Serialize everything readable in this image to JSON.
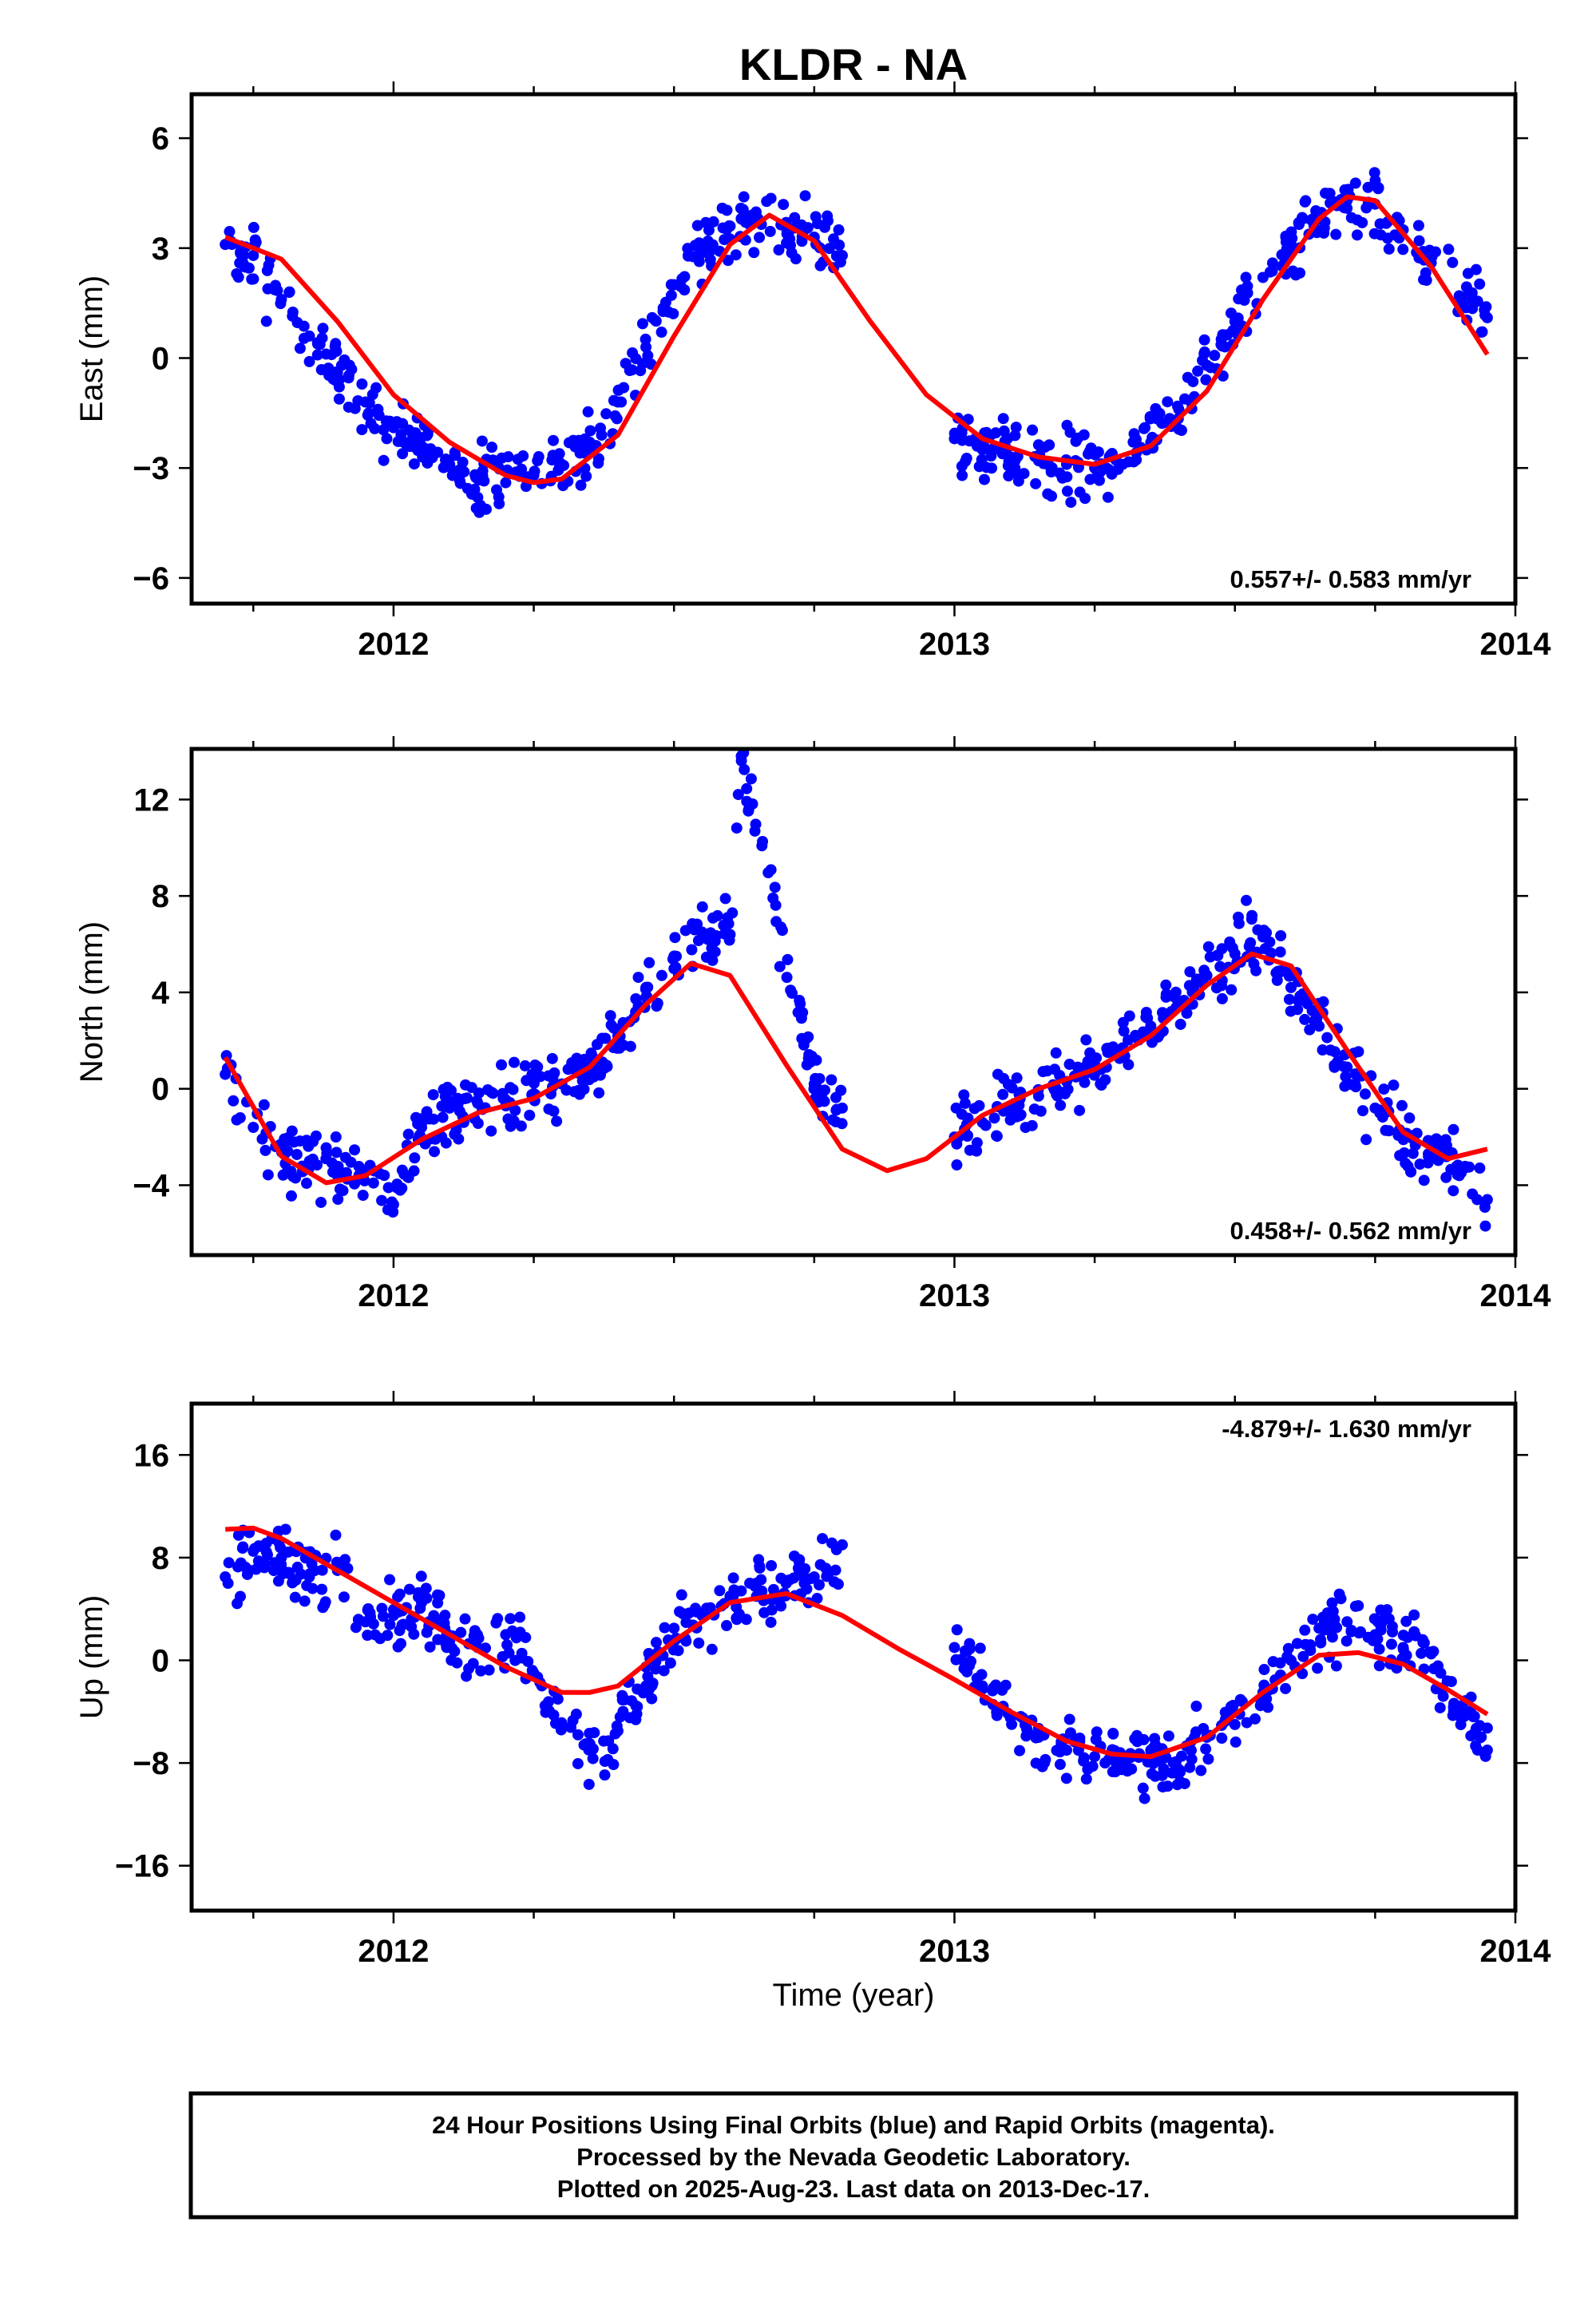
{
  "chart_data": {
    "type": "scatter",
    "title": "KLDR - NA",
    "xlabel": "Time (year)",
    "xlim": [
      2011.64,
      2014.0
    ],
    "x_ticks": [
      "2012",
      "2013",
      "2014"
    ],
    "footnote": [
      "24 Hour Positions Using Final Orbits (blue) and Rapid Orbits (magenta).",
      "Processed by the Nevada Geodetic Laboratory.",
      "Plotted on 2025-Aug-23. Last data on 2013-Dec-17."
    ],
    "marker_color": "#0000ff",
    "fit_color": "#ff0000",
    "panels": [
      {
        "id": "east",
        "ylabel": "East (mm)",
        "ylim": [
          -6.7,
          7.2
        ],
        "yticks": [
          6,
          3,
          0,
          -3,
          -6
        ],
        "ytick_labels": [
          "6",
          "3",
          "0",
          "−3",
          "−6"
        ],
        "rate_label": "0.557+/- 0.583 mm/yr",
        "rate_pos": "bottom-right",
        "series": [
          {
            "x": [
              2011.7,
              2011.75,
              2011.8,
              2011.85,
              2011.9,
              2011.95,
              2012.0,
              2012.05,
              2012.1,
              2012.15,
              2012.2,
              2012.25,
              2012.3,
              2012.35,
              2012.4,
              2012.45,
              2012.5,
              2012.55,
              2012.6,
              2012.65,
              2012.7,
              2012.75,
              2012.8
            ],
            "y": [
              3.1,
              2.8,
              1.6,
              0.6,
              -0.4,
              -1.2,
              -1.9,
              -2.4,
              -2.9,
              -3.3,
              -3.4,
              -3.2,
              -2.9,
              -2.3,
              -1.2,
              0.3,
              2.0,
              3.0,
              3.6,
              3.8,
              3.7,
              3.3,
              2.8
            ]
          },
          {
            "x": [
              2013.0,
              2013.05,
              2013.1,
              2013.15,
              2013.2,
              2013.25,
              2013.3,
              2013.35,
              2013.4,
              2013.45,
              2013.5,
              2013.55,
              2013.6,
              2013.65,
              2013.7,
              2013.75,
              2013.8,
              2013.85,
              2013.9,
              2013.95
            ],
            "y": [
              -2.2,
              -2.5,
              -2.7,
              -2.8,
              -2.9,
              -3.0,
              -2.9,
              -2.3,
              -1.4,
              -0.2,
              1.0,
              2.2,
              3.1,
              3.8,
              4.3,
              4.2,
              3.5,
              2.6,
              1.7,
              1.1
            ]
          }
        ],
        "fit": {
          "x": [
            2011.7,
            2011.8,
            2011.9,
            2012.0,
            2012.1,
            2012.2,
            2012.25,
            2012.3,
            2012.4,
            2012.5,
            2012.6,
            2012.67,
            2012.75,
            2012.85,
            2012.95,
            2013.05,
            2013.15,
            2013.25,
            2013.35,
            2013.45,
            2013.55,
            2013.65,
            2013.7,
            2013.75,
            2013.85,
            2013.95
          ],
          "y": [
            3.3,
            2.7,
            1.0,
            -1.0,
            -2.3,
            -3.2,
            -3.4,
            -3.3,
            -2.1,
            0.6,
            3.1,
            3.9,
            3.2,
            1.0,
            -1.0,
            -2.2,
            -2.7,
            -2.9,
            -2.4,
            -0.9,
            1.6,
            3.8,
            4.4,
            4.3,
            2.5,
            0.1
          ]
        }
      },
      {
        "id": "north",
        "ylabel": "North (mm)",
        "ylim": [
          -6.9,
          14.1
        ],
        "yticks": [
          12,
          8,
          4,
          0,
          -4
        ],
        "ytick_labels": [
          "12",
          "8",
          "4",
          "0",
          "−4"
        ],
        "rate_label": "0.458+/- 0.562 mm/yr",
        "rate_pos": "bottom-right",
        "series": [
          {
            "x": [
              2011.7,
              2011.75,
              2011.8,
              2011.85,
              2011.9,
              2011.95,
              2012.0,
              2012.05,
              2012.1,
              2012.15,
              2012.2,
              2012.25,
              2012.3,
              2012.35,
              2012.4,
              2012.45,
              2012.5,
              2012.55,
              2012.6,
              2012.62,
              2012.75,
              2012.8
            ],
            "y": [
              0.6,
              -1.6,
              -2.4,
              -3.0,
              -3.6,
              -3.4,
              -4.8,
              -1.6,
              -0.8,
              -0.6,
              -0.5,
              -0.2,
              0.2,
              0.9,
              2.2,
              3.8,
              5.5,
              6.5,
              6.4,
              13.8,
              0.2,
              -0.8
            ]
          },
          {
            "x": [
              2013.0,
              2013.05,
              2013.1,
              2013.15,
              2013.2,
              2013.25,
              2013.3,
              2013.35,
              2013.4,
              2013.45,
              2013.5,
              2013.55,
              2013.6,
              2013.65,
              2013.7,
              2013.75,
              2013.8,
              2013.85,
              2013.9,
              2013.95
            ],
            "y": [
              -2.0,
              -1.4,
              -0.8,
              -0.3,
              0.3,
              1.0,
              1.7,
              2.6,
              3.6,
              4.7,
              5.6,
              6.3,
              4.2,
              2.6,
              0.9,
              -0.8,
              -1.9,
              -2.7,
              -3.6,
              -4.6
            ]
          }
        ],
        "fit": {
          "x": [
            2011.7,
            2011.8,
            2011.88,
            2011.95,
            2012.05,
            2012.15,
            2012.25,
            2012.35,
            2012.45,
            2012.53,
            2012.6,
            2012.7,
            2012.8,
            2012.88,
            2012.95,
            2013.05,
            2013.15,
            2013.25,
            2013.35,
            2013.45,
            2013.53,
            2013.6,
            2013.7,
            2013.8,
            2013.88,
            2013.95
          ],
          "y": [
            1.3,
            -2.8,
            -3.9,
            -3.6,
            -2.1,
            -1.0,
            -0.4,
            0.9,
            3.5,
            5.2,
            4.7,
            1.0,
            -2.5,
            -3.4,
            -2.9,
            -1.1,
            0.0,
            0.8,
            2.2,
            4.3,
            5.6,
            5.1,
            1.6,
            -1.8,
            -2.9,
            -2.5
          ]
        }
      },
      {
        "id": "up",
        "ylabel": "Up (mm)",
        "ylim": [
          -19.5,
          20.0
        ],
        "yticks": [
          16,
          8,
          0,
          -8,
          -16
        ],
        "ytick_labels": [
          "16",
          "8",
          "0",
          "−8",
          "−16"
        ],
        "rate_label": "-4.879+/- 1.630 mm/yr",
        "rate_pos": "top-right",
        "series": [
          {
            "x": [
              2011.7,
              2011.75,
              2011.8,
              2011.85,
              2011.9,
              2011.95,
              2012.0,
              2012.05,
              2012.1,
              2012.15,
              2012.2,
              2012.25,
              2012.3,
              2012.35,
              2012.4,
              2012.45,
              2012.5,
              2012.55,
              2012.6,
              2012.7,
              2012.75,
              2012.8
            ],
            "y": [
              6.5,
              8.5,
              8.0,
              6.5,
              7.0,
              3.0,
              3.5,
              4.5,
              1.5,
              1.0,
              2.0,
              -1.0,
              -5.0,
              -6.5,
              -5.5,
              -2.0,
              2.5,
              3.5,
              5.0,
              6.0,
              6.5,
              9.0
            ]
          },
          {
            "x": [
              2013.0,
              2013.05,
              2013.1,
              2013.15,
              2013.2,
              2013.25,
              2013.3,
              2013.35,
              2013.4,
              2013.45,
              2013.5,
              2013.55,
              2013.6,
              2013.65,
              2013.7,
              2013.75,
              2013.8,
              2013.85,
              2013.9,
              2013.95
            ],
            "y": [
              1.0,
              -2.0,
              -4.5,
              -6.0,
              -7.0,
              -7.5,
              -8.0,
              -7.0,
              -8.5,
              -6.0,
              -5.0,
              -2.5,
              0.0,
              2.5,
              3.0,
              2.0,
              1.0,
              0.5,
              -4.0,
              -7.0
            ]
          }
        ],
        "fit": {
          "x": [
            2011.7,
            2011.75,
            2011.8,
            2011.9,
            2012.0,
            2012.1,
            2012.2,
            2012.3,
            2012.35,
            2012.4,
            2012.5,
            2012.6,
            2012.7,
            2012.8,
            2012.9,
            2013.0,
            2013.1,
            2013.2,
            2013.28,
            2013.35,
            2013.45,
            2013.55,
            2013.65,
            2013.72,
            2013.8,
            2013.88,
            2013.95
          ],
          "y": [
            10.2,
            10.3,
            9.5,
            7.0,
            4.5,
            2.0,
            -0.5,
            -2.5,
            -2.5,
            -2.0,
            1.5,
            4.5,
            5.2,
            3.5,
            0.9,
            -1.5,
            -4.0,
            -6.3,
            -7.3,
            -7.5,
            -6.0,
            -2.5,
            0.4,
            0.6,
            -0.3,
            -2.3,
            -4.2
          ]
        }
      }
    ]
  }
}
